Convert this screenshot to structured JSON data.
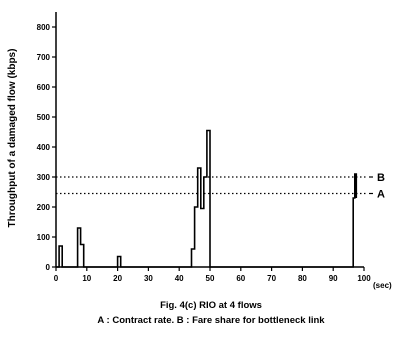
{
  "chart_data": {
    "type": "line",
    "title": "Fig. 4(c) RIO at 4 flows",
    "caption": "A : Contract rate. B : Fare share for bottleneck link",
    "xlabel": "",
    "x_unit": "(sec)",
    "ylabel": "Throughput of a damaged flow (kbps)",
    "xlim": [
      0,
      100
    ],
    "ylim": [
      0,
      850
    ],
    "x_ticks": [
      0,
      10,
      20,
      30,
      40,
      50,
      60,
      70,
      80,
      90,
      100
    ],
    "y_ticks": [
      0,
      100,
      200,
      300,
      400,
      500,
      600,
      700,
      800
    ],
    "grid": false,
    "series": [
      {
        "x": [
          0,
          1,
          1,
          2,
          2,
          7,
          7,
          8,
          8,
          9,
          9,
          20,
          20,
          21,
          21,
          44,
          44,
          45,
          45,
          46,
          46,
          47,
          47,
          48,
          48,
          49,
          49,
          50,
          50,
          96.5,
          96.5,
          97,
          97,
          97.5,
          97.5
        ],
        "y": [
          0,
          0,
          70,
          70,
          0,
          0,
          130,
          130,
          75,
          75,
          0,
          0,
          35,
          35,
          0,
          0,
          60,
          60,
          200,
          200,
          330,
          330,
          195,
          195,
          300,
          300,
          455,
          455,
          0,
          0,
          230,
          230,
          310,
          310,
          230
        ]
      }
    ],
    "reference_lines": [
      {
        "label": "A",
        "y": 245,
        "style": "dotted"
      },
      {
        "label": "B",
        "y": 300,
        "style": "dotted"
      }
    ]
  }
}
